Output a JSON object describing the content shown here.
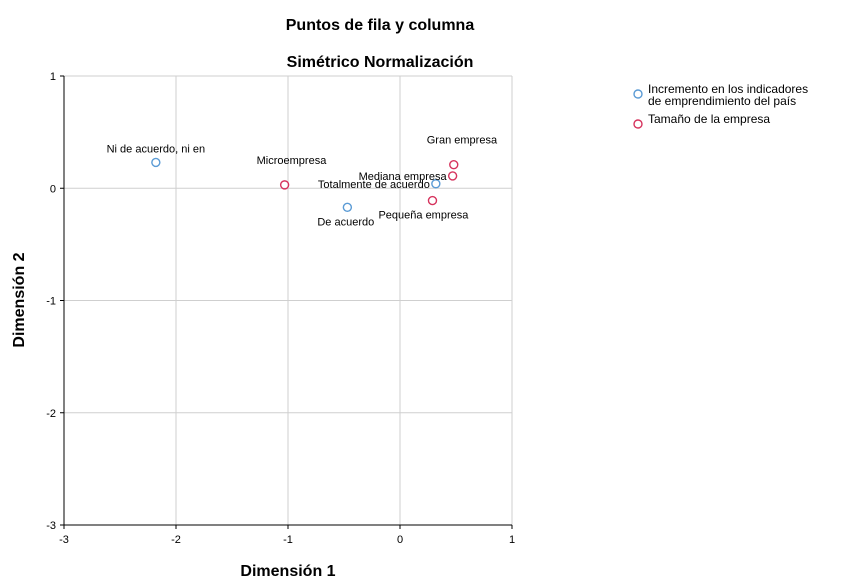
{
  "chart_data": {
    "type": "scatter",
    "title": "Puntos de fila y columna",
    "subtitle": "Simétrico Normalización",
    "xlabel": "Dimensión 1",
    "ylabel": "Dimensión 2",
    "xlim": [
      -3,
      1
    ],
    "ylim": [
      -3,
      1
    ],
    "xticks": [
      -3,
      -2,
      -1,
      0,
      1
    ],
    "yticks": [
      -3,
      -2,
      -1,
      0,
      1
    ],
    "grid": true,
    "legend_position": "right",
    "series": [
      {
        "name": "Incremento en los indicadores de emprendimiento del país",
        "legend_lines": [
          "Incremento en los indicadores",
          "de emprendimiento del país"
        ],
        "color": "#5b9bd5",
        "points": [
          {
            "label": "Ni de acuerdo, ni en",
            "x": -2.18,
            "y": 0.23
          },
          {
            "label": "De acuerdo",
            "x": -0.47,
            "y": -0.17
          },
          {
            "label": "Totalmente de acuerdo",
            "x": 0.32,
            "y": 0.04
          }
        ]
      },
      {
        "name": "Tamaño de la empresa",
        "legend_lines": [
          "Tamaño de la empresa"
        ],
        "color": "#d6335d",
        "points": [
          {
            "label": "Microempresa",
            "x": -1.03,
            "y": 0.03
          },
          {
            "label": "Gran empresa",
            "x": 0.48,
            "y": 0.21
          },
          {
            "label": "Mediana empresa",
            "x": 0.47,
            "y": 0.11
          },
          {
            "label": "Pequeña empresa",
            "x": 0.29,
            "y": -0.11
          }
        ]
      }
    ]
  }
}
